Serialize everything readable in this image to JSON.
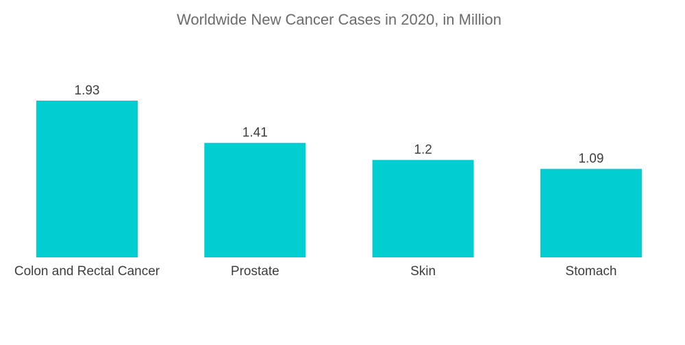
{
  "chart_data": {
    "type": "bar",
    "title": "Worldwide New Cancer Cases in 2020, in Million",
    "categories": [
      "Colon and Rectal Cancer",
      "Prostate",
      "Skin",
      "Stomach"
    ],
    "values": [
      1.93,
      1.41,
      1.2,
      1.09
    ],
    "value_labels": [
      "1.93",
      "1.41",
      "1.2",
      "1.09"
    ],
    "xlabel": "",
    "ylabel": "",
    "ylim": [
      0,
      1.93
    ],
    "grid": false,
    "legend": "none",
    "colors": {
      "bar": "#00ced1"
    }
  }
}
